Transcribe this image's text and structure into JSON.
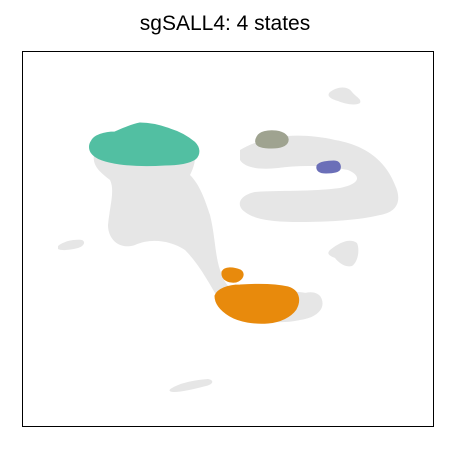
{
  "chart_data": {
    "type": "scatter",
    "title": "sgSALL4: 4 states",
    "xlabel": "",
    "ylabel": "",
    "grid": false,
    "legend": "none",
    "background_color": "#e6e6e6",
    "highlight_series": [
      {
        "color": "#52bfa2",
        "points": []
      },
      {
        "color": "#9fa390",
        "points": []
      },
      {
        "color": "#6b6fb8",
        "points": []
      },
      {
        "color": "#e88a0c",
        "points": []
      }
    ]
  }
}
